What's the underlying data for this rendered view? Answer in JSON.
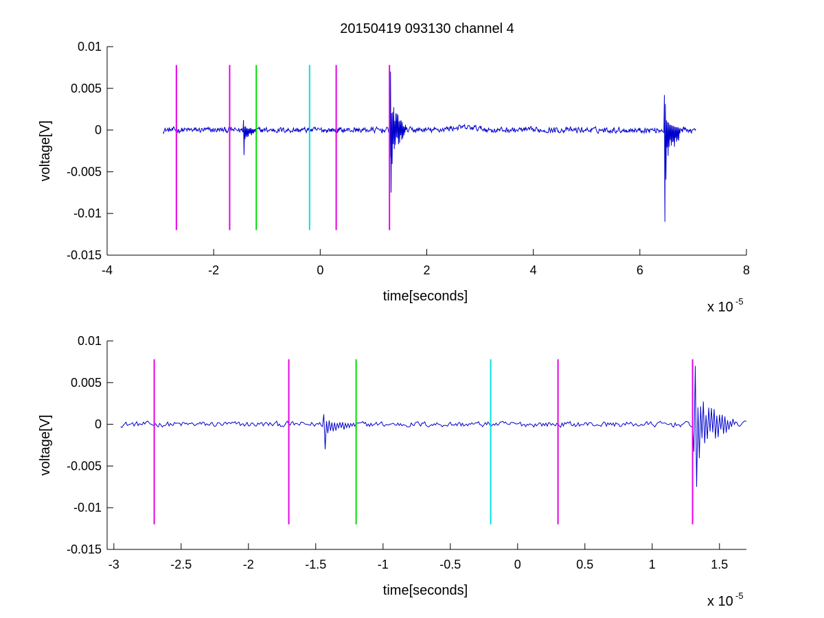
{
  "figure": {
    "title": "20150419 093130 channel 4"
  },
  "chart_data": [
    {
      "type": "line",
      "title": "20150419 093130 channel 4",
      "xlabel": "time[seconds]",
      "ylabel": "voltage[V]",
      "x_multiplier_text": "x 10",
      "x_multiplier_exp": "-5",
      "xlim": [
        -4,
        8
      ],
      "ylim": [
        -0.015,
        0.01
      ],
      "xticks": [
        -4,
        -2,
        0,
        2,
        4,
        6,
        8
      ],
      "xtick_labels": [
        "-4",
        "-2",
        "0",
        "2",
        "4",
        "6",
        "8"
      ],
      "yticks": [
        -0.015,
        -0.01,
        -0.005,
        0,
        0.005,
        0.01
      ],
      "ytick_labels": [
        "-0.015",
        "-0.01",
        "-0.005",
        "0",
        "0.005",
        "0.01"
      ],
      "grid": false,
      "signal": {
        "color": "#0000cc",
        "x_range": [
          -2.95,
          7.05
        ],
        "noise_amplitude": 0.0003,
        "bursts": [
          {
            "x": -1.45,
            "x_end": -1.2,
            "peak_max": 0.0012,
            "peak_min": -0.003
          },
          {
            "x": 1.3,
            "x_end": 1.6,
            "peak_max": 0.007,
            "peak_min": -0.0075
          },
          {
            "x": 6.45,
            "x_end": 6.75,
            "peak_max": 0.0042,
            "peak_min": -0.011
          }
        ]
      },
      "markers": [
        {
          "x": -2.7,
          "color": "#e600e6",
          "y_range": [
            -0.012,
            0.0078
          ]
        },
        {
          "x": -1.7,
          "color": "#e600e6",
          "y_range": [
            -0.012,
            0.0078
          ]
        },
        {
          "x": -1.2,
          "color": "#00dd00",
          "y_range": [
            -0.012,
            0.0078
          ]
        },
        {
          "x": -0.2,
          "color": "#00e0e0",
          "y_range": [
            -0.012,
            0.0078
          ]
        },
        {
          "x": 0.3,
          "color": "#e600e6",
          "y_range": [
            -0.012,
            0.0078
          ]
        },
        {
          "x": 1.3,
          "color": "#e600e6",
          "y_range": [
            -0.012,
            0.0078
          ]
        }
      ]
    },
    {
      "type": "line",
      "title": "",
      "xlabel": "time[seconds]",
      "ylabel": "voltage[V]",
      "x_multiplier_text": "x 10",
      "x_multiplier_exp": "-5",
      "xlim": [
        -3.05,
        1.7
      ],
      "ylim": [
        -0.015,
        0.01
      ],
      "xticks": [
        -3,
        -2.5,
        -2,
        -1.5,
        -1,
        -0.5,
        0,
        0.5,
        1,
        1.5
      ],
      "xtick_labels": [
        "-3",
        "-2.5",
        "-2",
        "-1.5",
        "-1",
        "-0.5",
        "0",
        "0.5",
        "1",
        "1.5"
      ],
      "yticks": [
        -0.015,
        -0.01,
        -0.005,
        0,
        0.005,
        0.01
      ],
      "ytick_labels": [
        "-0.015",
        "-0.01",
        "-0.005",
        "0",
        "0.005",
        "0.01"
      ],
      "grid": false,
      "signal": {
        "color": "#0000cc",
        "x_range": [
          -2.95,
          1.7
        ],
        "noise_amplitude": 0.0003,
        "bursts": [
          {
            "x": -1.45,
            "x_end": -1.2,
            "peak_max": 0.0012,
            "peak_min": -0.003
          },
          {
            "x": 1.3,
            "x_end": 1.6,
            "peak_max": 0.007,
            "peak_min": -0.0075
          }
        ]
      },
      "markers": [
        {
          "x": -2.7,
          "color": "#e600e6",
          "y_range": [
            -0.012,
            0.0078
          ]
        },
        {
          "x": -1.7,
          "color": "#e600e6",
          "y_range": [
            -0.012,
            0.0078
          ]
        },
        {
          "x": -1.2,
          "color": "#00dd00",
          "y_range": [
            -0.012,
            0.0078
          ]
        },
        {
          "x": -0.2,
          "color": "#00e0e0",
          "y_range": [
            -0.012,
            0.0078
          ]
        },
        {
          "x": 0.3,
          "color": "#e600e6",
          "y_range": [
            -0.012,
            0.0078
          ]
        },
        {
          "x": 1.3,
          "color": "#e600e6",
          "y_range": [
            -0.012,
            0.0078
          ]
        }
      ]
    }
  ]
}
